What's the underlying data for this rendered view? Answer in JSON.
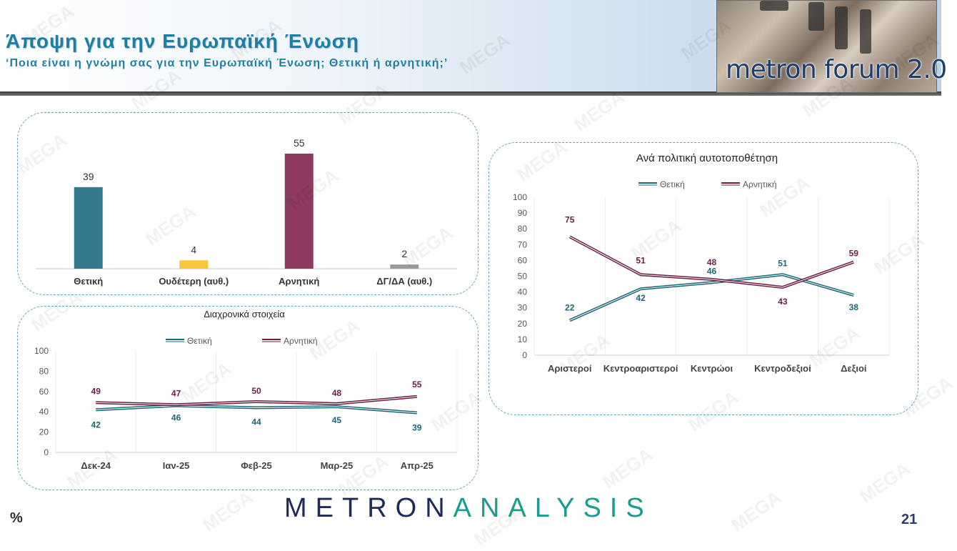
{
  "header": {
    "title": "Άποψη για την Ευρωπαϊκή Ένωση",
    "subtitle": "‘Ποια είναι η γνώμη σας για την Ευρωπαϊκή Ένωση; Θετική ή αρνητική;’",
    "logo_text": "metron forum 2.0"
  },
  "footer": {
    "brand_part1": "METRON",
    "brand_part2": "ANALYSIS",
    "unit_label": "%",
    "page_number": "21"
  },
  "watermark": "MEGA",
  "colors": {
    "positive": "#347a8c",
    "neutral": "#f9c53d",
    "negative": "#8e3a62",
    "dk": "#9a9a9a",
    "title_blue": "#1f7ea3"
  },
  "chart_data": [
    {
      "id": "overall",
      "type": "bar",
      "title": "",
      "categories": [
        "Θετική",
        "Ουδέτερη (αυθ.)",
        "Αρνητική",
        "ΔΓ/ΔΑ (αυθ.)"
      ],
      "values": [
        39,
        4,
        55,
        2
      ],
      "colors": [
        "#347a8c",
        "#f9c53d",
        "#8e3a62",
        "#9a9a9a"
      ],
      "ylim": [
        0,
        60
      ]
    },
    {
      "id": "trend",
      "type": "line",
      "title": "Διαχρονικά στοιχεία",
      "categories": [
        "Δεκ-24",
        "Ιαν-25",
        "Φεβ-25",
        "Μαρ-25",
        "Απρ-25"
      ],
      "series": [
        {
          "name": "Θετική",
          "values": [
            42,
            46,
            44,
            45,
            39
          ],
          "color": "#1b6878"
        },
        {
          "name": "Αρνητική",
          "values": [
            49,
            47,
            50,
            48,
            55
          ],
          "color": "#6b1e45"
        }
      ],
      "yticks": [
        0,
        20,
        40,
        60,
        80,
        100
      ],
      "ylim": [
        0,
        100
      ],
      "legend": "top"
    },
    {
      "id": "ideology",
      "type": "line",
      "title": "Ανά πολιτική αυτοτοποθέτηση",
      "categories": [
        "Αριστεροί",
        "Κεντροαριστεροί",
        "Κεντρώοι",
        "Κεντροδεξιοί",
        "Δεξιοί"
      ],
      "series": [
        {
          "name": "Θετική",
          "values": [
            22,
            42,
            46,
            51,
            38
          ],
          "color": "#1b6878"
        },
        {
          "name": "Αρνητική",
          "values": [
            75,
            51,
            48,
            43,
            59
          ],
          "color": "#6b1e45"
        }
      ],
      "yticks": [
        0,
        10,
        20,
        30,
        40,
        50,
        60,
        70,
        80,
        90,
        100
      ],
      "ylim": [
        0,
        100
      ],
      "legend": "top"
    }
  ]
}
